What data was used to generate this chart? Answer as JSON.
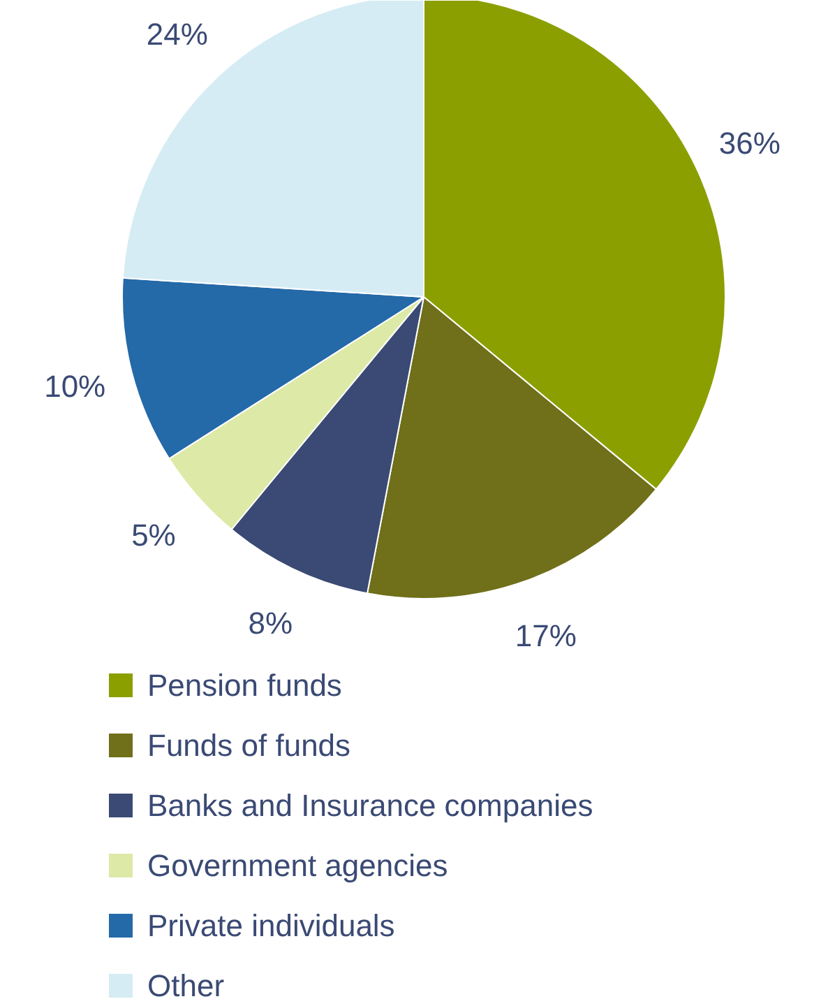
{
  "chart_data": {
    "type": "pie",
    "categories": [
      "Pension funds",
      "Funds of funds",
      "Banks and Insurance companies",
      "Government agencies",
      "Private individuals",
      "Other"
    ],
    "values": [
      36,
      17,
      8,
      5,
      10,
      24
    ],
    "colors": [
      "#8c9f00",
      "#706f1a",
      "#3a4a74",
      "#dde9a6",
      "#2469a8",
      "#d6ecf4"
    ],
    "value_labels": [
      "36%",
      "17%",
      "8%",
      "5%",
      "10%",
      "24%"
    ],
    "legend": "bottom"
  }
}
